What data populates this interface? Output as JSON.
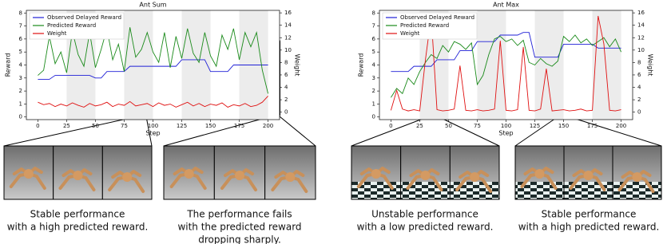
{
  "chart_data": [
    {
      "type": "line",
      "title": "Ant Sum",
      "xlabel": "Step",
      "ylabel": "Reward",
      "y2label": "Weight",
      "x": [
        0,
        5,
        10,
        15,
        20,
        25,
        30,
        35,
        40,
        45,
        50,
        55,
        60,
        65,
        70,
        75,
        80,
        85,
        90,
        95,
        100,
        105,
        110,
        115,
        120,
        125,
        130,
        135,
        140,
        145,
        150,
        155,
        160,
        165,
        170,
        175,
        180,
        185,
        190,
        195,
        200
      ],
      "xlim": [
        -10,
        210
      ],
      "xticks": [
        0,
        25,
        50,
        75,
        100,
        125,
        150,
        175,
        200
      ],
      "ylim": [
        -0.2,
        8.2
      ],
      "yticks": [
        0,
        1,
        2,
        3,
        4,
        5,
        6,
        7,
        8
      ],
      "y2lim": [
        -1.2,
        16.4
      ],
      "y2ticks": [
        0,
        2,
        4,
        6,
        8,
        10,
        12,
        14,
        16
      ],
      "shaded": true,
      "legend": "upper left",
      "series": [
        {
          "name": "Observed Delayed Reward",
          "color": "#1f1fd6",
          "values": [
            2.9,
            2.9,
            2.9,
            3.2,
            3.2,
            3.2,
            3.2,
            3.2,
            3.2,
            3.2,
            3.0,
            3.0,
            3.5,
            3.5,
            3.5,
            3.5,
            3.9,
            3.9,
            3.9,
            3.9,
            3.9,
            3.9,
            3.9,
            3.9,
            3.9,
            4.4,
            4.4,
            4.4,
            4.4,
            4.4,
            3.5,
            3.5,
            3.5,
            3.5,
            4.0,
            4.0,
            4.0,
            4.0,
            4.0,
            4.0,
            4.0
          ]
        },
        {
          "name": "Predicted Reward",
          "color": "#1a8a1a",
          "values": [
            3.2,
            3.6,
            6.2,
            4.1,
            5.0,
            3.4,
            6.6,
            4.8,
            3.9,
            6.5,
            3.8,
            5.2,
            6.8,
            4.4,
            5.6,
            3.5,
            6.9,
            4.6,
            5.2,
            6.5,
            5.0,
            4.2,
            6.5,
            3.8,
            6.2,
            4.5,
            6.8,
            4.9,
            4.2,
            6.5,
            4.7,
            3.9,
            6.3,
            5.2,
            6.8,
            4.4,
            6.5,
            5.4,
            6.5,
            3.6,
            1.8
          ]
        },
        {
          "name": "Weight",
          "color": "#e01010",
          "axis": "y2",
          "values": [
            1.6,
            1.2,
            1.4,
            0.9,
            1.3,
            1.0,
            1.5,
            1.1,
            0.8,
            1.4,
            1.0,
            1.2,
            1.6,
            0.9,
            1.3,
            1.1,
            1.7,
            1.0,
            1.2,
            1.4,
            0.9,
            1.5,
            1.1,
            1.3,
            0.8,
            1.2,
            1.6,
            1.0,
            1.4,
            0.9,
            1.3,
            1.1,
            1.5,
            0.8,
            1.2,
            1.0,
            1.4,
            0.9,
            1.1,
            1.6,
            2.6
          ]
        }
      ]
    },
    {
      "type": "line",
      "title": "Ant Max",
      "xlabel": "Step",
      "ylabel": "Reward",
      "y2label": "Weight",
      "x": [
        0,
        5,
        10,
        15,
        20,
        25,
        30,
        35,
        40,
        45,
        50,
        55,
        60,
        65,
        70,
        75,
        80,
        85,
        90,
        95,
        100,
        105,
        110,
        115,
        120,
        125,
        130,
        135,
        140,
        145,
        150,
        155,
        160,
        165,
        170,
        175,
        180,
        185,
        190,
        195,
        200
      ],
      "xlim": [
        -10,
        210
      ],
      "xticks": [
        0,
        25,
        50,
        75,
        100,
        125,
        150,
        175,
        200
      ],
      "ylim": [
        -0.2,
        8.2
      ],
      "yticks": [
        0,
        1,
        2,
        3,
        4,
        5,
        6,
        7,
        8
      ],
      "y2lim": [
        -1.2,
        16.4
      ],
      "y2ticks": [
        0,
        2,
        4,
        6,
        8,
        10,
        12,
        14,
        16
      ],
      "shaded": true,
      "legend": "upper left",
      "series": [
        {
          "name": "Observed Delayed Reward",
          "color": "#1f1fd6",
          "values": [
            3.5,
            3.5,
            3.5,
            3.5,
            3.9,
            3.9,
            3.9,
            3.9,
            4.4,
            4.4,
            4.4,
            4.4,
            5.1,
            5.1,
            5.1,
            5.8,
            5.8,
            5.8,
            5.8,
            6.3,
            6.3,
            6.3,
            6.3,
            6.5,
            6.5,
            4.6,
            4.6,
            4.6,
            4.6,
            4.6,
            5.6,
            5.6,
            5.6,
            5.6,
            5.6,
            5.6,
            5.3,
            5.3,
            5.3,
            5.3,
            5.3
          ]
        },
        {
          "name": "Predicted Reward",
          "color": "#1a8a1a",
          "values": [
            1.5,
            2.2,
            1.8,
            3.0,
            2.5,
            3.5,
            4.2,
            4.8,
            4.5,
            5.5,
            5.0,
            5.8,
            5.6,
            5.2,
            5.7,
            2.5,
            3.2,
            4.8,
            6.0,
            6.2,
            5.8,
            6.0,
            5.5,
            5.9,
            4.2,
            4.0,
            4.5,
            4.1,
            3.9,
            4.3,
            6.2,
            5.8,
            6.3,
            5.7,
            6.0,
            5.5,
            5.8,
            6.1,
            5.4,
            6.0,
            5.0
          ]
        },
        {
          "name": "Weight",
          "color": "#e01010",
          "axis": "y2",
          "values": [
            0.3,
            3.5,
            0.5,
            0.2,
            0.4,
            0.2,
            8.5,
            15.5,
            0.4,
            0.2,
            0.3,
            0.5,
            7.5,
            0.3,
            0.2,
            0.4,
            0.2,
            0.3,
            0.5,
            11.5,
            0.3,
            0.2,
            0.4,
            10.5,
            0.3,
            0.2,
            0.5,
            7.0,
            0.2,
            0.3,
            0.4,
            0.2,
            0.3,
            0.5,
            0.2,
            0.3,
            15.5,
            11.0,
            0.3,
            0.2,
            0.4
          ]
        }
      ]
    }
  ],
  "captions": [
    [
      "Stable performance",
      "with a high predicted reward."
    ],
    [
      "The performance fails",
      "with the predicted reward",
      "dropping sharply."
    ],
    [
      "Unstable performance",
      "with a low predicted reward."
    ],
    [
      "Stable performance",
      "with a high predicted reward."
    ]
  ]
}
